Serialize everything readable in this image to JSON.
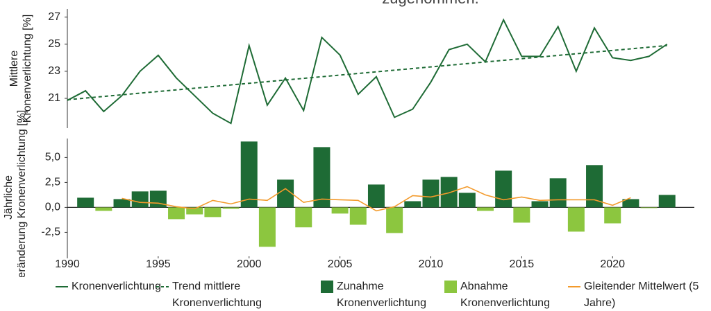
{
  "chart_data": [
    {
      "type": "line",
      "title": "zugenommen.",
      "y_label": "Mittlere Kronenverlichtung [%]",
      "xlim": [
        1990,
        2024.5
      ],
      "ylim": [
        18.8,
        27.6
      ],
      "yticks": [
        21,
        23,
        25,
        27
      ],
      "series": [
        {
          "name": "Kronenverlichtung",
          "color": "#1e6b35",
          "style": "solid",
          "x": [
            1990,
            1991,
            1992,
            1993,
            1994,
            1995,
            1996,
            1997,
            1998,
            1999,
            2000,
            2001,
            2002,
            2003,
            2004,
            2005,
            2006,
            2007,
            2008,
            2009,
            2010,
            2011,
            2012,
            2013,
            2014,
            2015,
            2016,
            2017,
            2018,
            2019,
            2020,
            2021,
            2022,
            2023
          ],
          "values": [
            20.85,
            21.56,
            20.03,
            21.2,
            23.0,
            24.18,
            22.5,
            21.2,
            19.9,
            19.15,
            24.9,
            20.5,
            22.5,
            20.1,
            25.5,
            24.2,
            21.3,
            22.6,
            19.6,
            20.2,
            22.2,
            24.6,
            25.0,
            23.7,
            26.8,
            24.1,
            24.1,
            26.3,
            23.0,
            26.2,
            24.0,
            23.8,
            24.1,
            25.0
          ]
        },
        {
          "name": "Trend mittlere Kronenverlichtung",
          "color": "#1e6b35",
          "style": "dashed",
          "x": [
            1990,
            2023
          ],
          "values": [
            20.9,
            24.9
          ]
        }
      ]
    },
    {
      "type": "bar",
      "y_label": "Jährliche Veränderung Kronenverlichtung [%]",
      "xlim": [
        1990,
        2024.5
      ],
      "ylim": [
        -4.9,
        6.9
      ],
      "xticks": [
        1990,
        1995,
        2000,
        2005,
        2010,
        2015,
        2020
      ],
      "yticks": [
        {
          "value": 5,
          "label": "5,0"
        },
        {
          "value": 2.5,
          "label": "2,5"
        },
        {
          "value": 0,
          "label": "0,0"
        },
        {
          "value": -2.5,
          "label": "-2,5"
        }
      ],
      "series": [
        {
          "name": "Zunahme Kronenverlichtung",
          "color": "#1e6b35",
          "kind": "bar",
          "x": [
            1991,
            1992,
            1993,
            1994,
            1995,
            1996,
            1997,
            1998,
            1999,
            2000,
            2001,
            2002,
            2003,
            2004,
            2005,
            2006,
            2007,
            2008,
            2009,
            2010,
            2011,
            2012,
            2013,
            2014,
            2015,
            2016,
            2017,
            2018,
            2019,
            2020,
            2021,
            2022,
            2023
          ],
          "values": [
            0.97,
            null,
            0.83,
            1.6,
            1.67,
            null,
            null,
            null,
            null,
            6.6,
            null,
            2.78,
            null,
            6.04,
            null,
            null,
            2.29,
            null,
            0.62,
            2.78,
            3.05,
            1.46,
            null,
            3.68,
            null,
            0.62,
            2.92,
            null,
            4.24,
            null,
            0.83,
            null,
            1.25
          ]
        },
        {
          "name": "Abnahme Kronenverlichtung",
          "color": "#8cc63f",
          "kind": "bar",
          "x": [
            1991,
            1992,
            1993,
            1994,
            1995,
            1996,
            1997,
            1998,
            1999,
            2000,
            2001,
            2002,
            2003,
            2004,
            2005,
            2006,
            2007,
            2008,
            2009,
            2010,
            2011,
            2012,
            2013,
            2014,
            2015,
            2016,
            2017,
            2018,
            2019,
            2020,
            2021,
            2022,
            2023
          ],
          "values": [
            null,
            -0.35,
            null,
            null,
            null,
            -1.18,
            -0.7,
            -0.97,
            -0.14,
            null,
            -3.95,
            null,
            -2.0,
            null,
            -0.62,
            -1.74,
            null,
            -2.57,
            null,
            null,
            null,
            null,
            -0.35,
            null,
            -1.53,
            null,
            null,
            -2.43,
            null,
            -1.6,
            null,
            -0.07,
            null
          ]
        },
        {
          "name": "Gleitender Mittelwert (5 Jahre)",
          "color": "#f39a2b",
          "kind": "line",
          "x": [
            1993,
            1994,
            1995,
            1996,
            1997,
            1998,
            1999,
            2000,
            2001,
            2002,
            2003,
            2004,
            2005,
            2006,
            2007,
            2008,
            2009,
            2010,
            2011,
            2012,
            2013,
            2014,
            2015,
            2016,
            2017,
            2018,
            2019,
            2020,
            2021
          ],
          "values": [
            0.9,
            0.5,
            0.42,
            0.07,
            -0.14,
            0.7,
            0.35,
            0.83,
            0.7,
            1.88,
            0.5,
            0.83,
            0.76,
            0.7,
            -0.35,
            0.07,
            1.18,
            1.04,
            1.46,
            2.08,
            1.25,
            0.76,
            1.04,
            0.7,
            0.76,
            0.76,
            0.76,
            0.21,
            0.97
          ]
        }
      ]
    }
  ]
}
